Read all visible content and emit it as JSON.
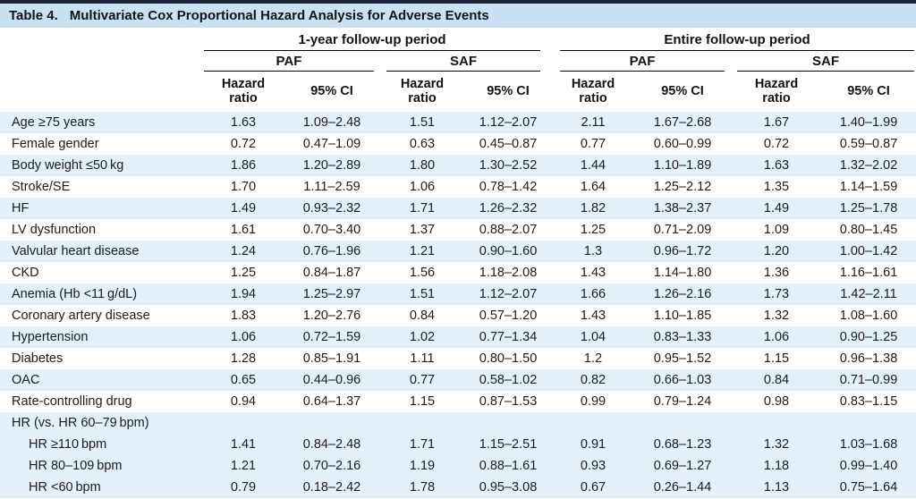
{
  "title": {
    "label": "Table 4.",
    "text": "Multivariate Cox Proportional Hazard Analysis for Adverse Events"
  },
  "colors": {
    "top_rule": "#1a2235",
    "title_band": "#c8e2f4",
    "row_stripe": "#e3f0fa",
    "text": "#1b1b1b",
    "header_rule": "#000000"
  },
  "table": {
    "groups": [
      "1-year follow-up period",
      "Entire follow-up period"
    ],
    "subgroups": [
      "PAF",
      "SAF",
      "PAF",
      "SAF"
    ],
    "measures": {
      "hr": "Hazard\nratio",
      "ci": "95% CI"
    },
    "rows": [
      {
        "label": "Age ≥75 years",
        "indent": false,
        "shaded": true,
        "values": [
          "1.63",
          "1.09–2.48",
          "1.51",
          "1.12–2.07",
          "2.11",
          "1.67–2.68",
          "1.67",
          "1.40–1.99"
        ]
      },
      {
        "label": "Female gender",
        "indent": false,
        "shaded": false,
        "values": [
          "0.72",
          "0.47–1.09",
          "0.63",
          "0.45–0.87",
          "0.77",
          "0.60–0.99",
          "0.72",
          "0.59–0.87"
        ]
      },
      {
        "label": "Body weight ≤50 kg",
        "indent": false,
        "shaded": true,
        "values": [
          "1.86",
          "1.20–2.89",
          "1.80",
          "1.30–2.52",
          "1.44",
          "1.10–1.89",
          "1.63",
          "1.32–2.02"
        ]
      },
      {
        "label": "Stroke/SE",
        "indent": false,
        "shaded": false,
        "values": [
          "1.70",
          "1.11–2.59",
          "1.06",
          "0.78–1.42",
          "1.64",
          "1.25–2.12",
          "1.35",
          "1.14–1.59"
        ]
      },
      {
        "label": "HF",
        "indent": false,
        "shaded": true,
        "values": [
          "1.49",
          "0.93–2.32",
          "1.71",
          "1.26–2.32",
          "1.82",
          "1.38–2.37",
          "1.49",
          "1.25–1.78"
        ]
      },
      {
        "label": "LV dysfunction",
        "indent": false,
        "shaded": false,
        "values": [
          "1.61",
          "0.70–3.40",
          "1.37",
          "0.88–2.07",
          "1.25",
          "0.71–2.09",
          "1.09",
          "0.80–1.45"
        ]
      },
      {
        "label": "Valvular heart disease",
        "indent": false,
        "shaded": true,
        "values": [
          "1.24",
          "0.76–1.96",
          "1.21",
          "0.90–1.60",
          "1.3",
          "0.96–1.72",
          "1.20",
          "1.00–1.42"
        ]
      },
      {
        "label": "CKD",
        "indent": false,
        "shaded": false,
        "values": [
          "1.25",
          "0.84–1.87",
          "1.56",
          "1.18–2.08",
          "1.43",
          "1.14–1.80",
          "1.36",
          "1.16–1.61"
        ]
      },
      {
        "label": "Anemia (Hb <11 g/dL)",
        "indent": false,
        "shaded": true,
        "values": [
          "1.94",
          "1.25–2.97",
          "1.51",
          "1.12–2.07",
          "1.66",
          "1.26–2.16",
          "1.73",
          "1.42–2.11"
        ]
      },
      {
        "label": "Coronary artery disease",
        "indent": false,
        "shaded": false,
        "values": [
          "1.83",
          "1.20–2.76",
          "0.84",
          "0.57–1.20",
          "1.43",
          "1.10–1.85",
          "1.32",
          "1.08–1.60"
        ]
      },
      {
        "label": "Hypertension",
        "indent": false,
        "shaded": true,
        "values": [
          "1.06",
          "0.72–1.59",
          "1.02",
          "0.77–1.34",
          "1.04",
          "0.83–1.33",
          "1.06",
          "0.90–1.25"
        ]
      },
      {
        "label": "Diabetes",
        "indent": false,
        "shaded": false,
        "values": [
          "1.28",
          "0.85–1.91",
          "1.11",
          "0.80–1.50",
          "1.2",
          "0.95–1.52",
          "1.15",
          "0.96–1.38"
        ]
      },
      {
        "label": "OAC",
        "indent": false,
        "shaded": true,
        "values": [
          "0.65",
          "0.44–0.96",
          "0.77",
          "0.58–1.02",
          "0.82",
          "0.66–1.03",
          "0.84",
          "0.71–0.99"
        ]
      },
      {
        "label": "Rate-controlling drug",
        "indent": false,
        "shaded": false,
        "values": [
          "0.94",
          "0.64–1.37",
          "1.15",
          "0.87–1.53",
          "0.99",
          "0.79–1.24",
          "0.98",
          "0.83–1.15"
        ]
      },
      {
        "label": "HR (vs. HR 60–79 bpm)",
        "indent": false,
        "shaded": true,
        "values": [
          "",
          "",
          "",
          "",
          "",
          "",
          "",
          ""
        ]
      },
      {
        "label": "HR ≥110 bpm",
        "indent": true,
        "shaded": true,
        "values": [
          "1.41",
          "0.84–2.48",
          "1.71",
          "1.15–2.51",
          "0.91",
          "0.68–1.23",
          "1.32",
          "1.03–1.68"
        ]
      },
      {
        "label": "HR 80–109 bpm",
        "indent": true,
        "shaded": true,
        "values": [
          "1.21",
          "0.70–2.16",
          "1.19",
          "0.88–1.61",
          "0.93",
          "0.69–1.27",
          "1.18",
          "0.99–1.40"
        ]
      },
      {
        "label": "HR <60 bpm",
        "indent": true,
        "shaded": true,
        "values": [
          "0.79",
          "0.18–2.42",
          "1.78",
          "0.95–3.08",
          "0.67",
          "0.26–1.44",
          "1.13",
          "0.75–1.64"
        ]
      }
    ]
  }
}
